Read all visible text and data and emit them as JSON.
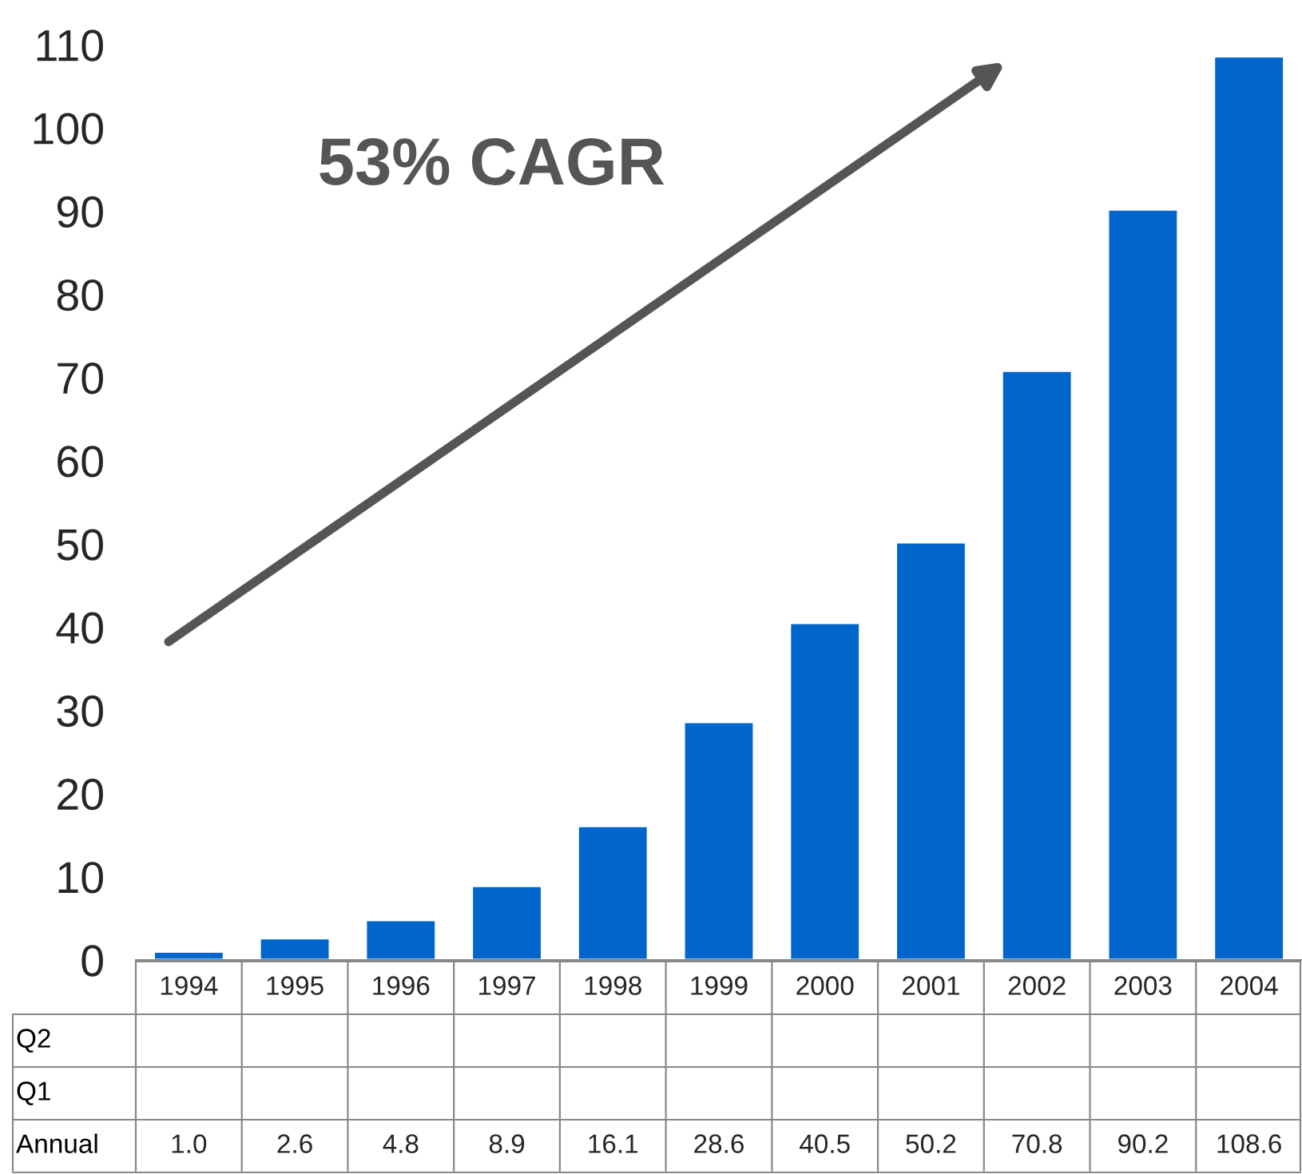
{
  "chart_data": {
    "type": "bar",
    "categories": [
      "1994",
      "1995",
      "1996",
      "1997",
      "1998",
      "1999",
      "2000",
      "2001",
      "2002",
      "2003",
      "2004"
    ],
    "series": [
      {
        "name": "Annual",
        "color": "#0066cc",
        "values": [
          1.0,
          2.6,
          4.8,
          8.9,
          16.1,
          28.6,
          40.5,
          50.2,
          70.8,
          90.2,
          108.6
        ],
        "value_labels": [
          "1.0",
          "2.6",
          "4.8",
          "8.9",
          "16.1",
          "28.6",
          "40.5",
          "50.2",
          "70.8",
          "90.2",
          "108.6"
        ]
      },
      {
        "name": "Q1",
        "values": [
          null,
          null,
          null,
          null,
          null,
          null,
          null,
          null,
          null,
          null,
          null
        ]
      },
      {
        "name": "Q2",
        "values": [
          null,
          null,
          null,
          null,
          null,
          null,
          null,
          null,
          null,
          null,
          null
        ]
      }
    ],
    "ylim": [
      0,
      110
    ],
    "yticks": [
      0,
      10,
      20,
      30,
      40,
      50,
      60,
      70,
      80,
      90,
      100,
      110
    ],
    "annotations": [
      "53% CAGR"
    ],
    "grid": false,
    "legend": false
  }
}
